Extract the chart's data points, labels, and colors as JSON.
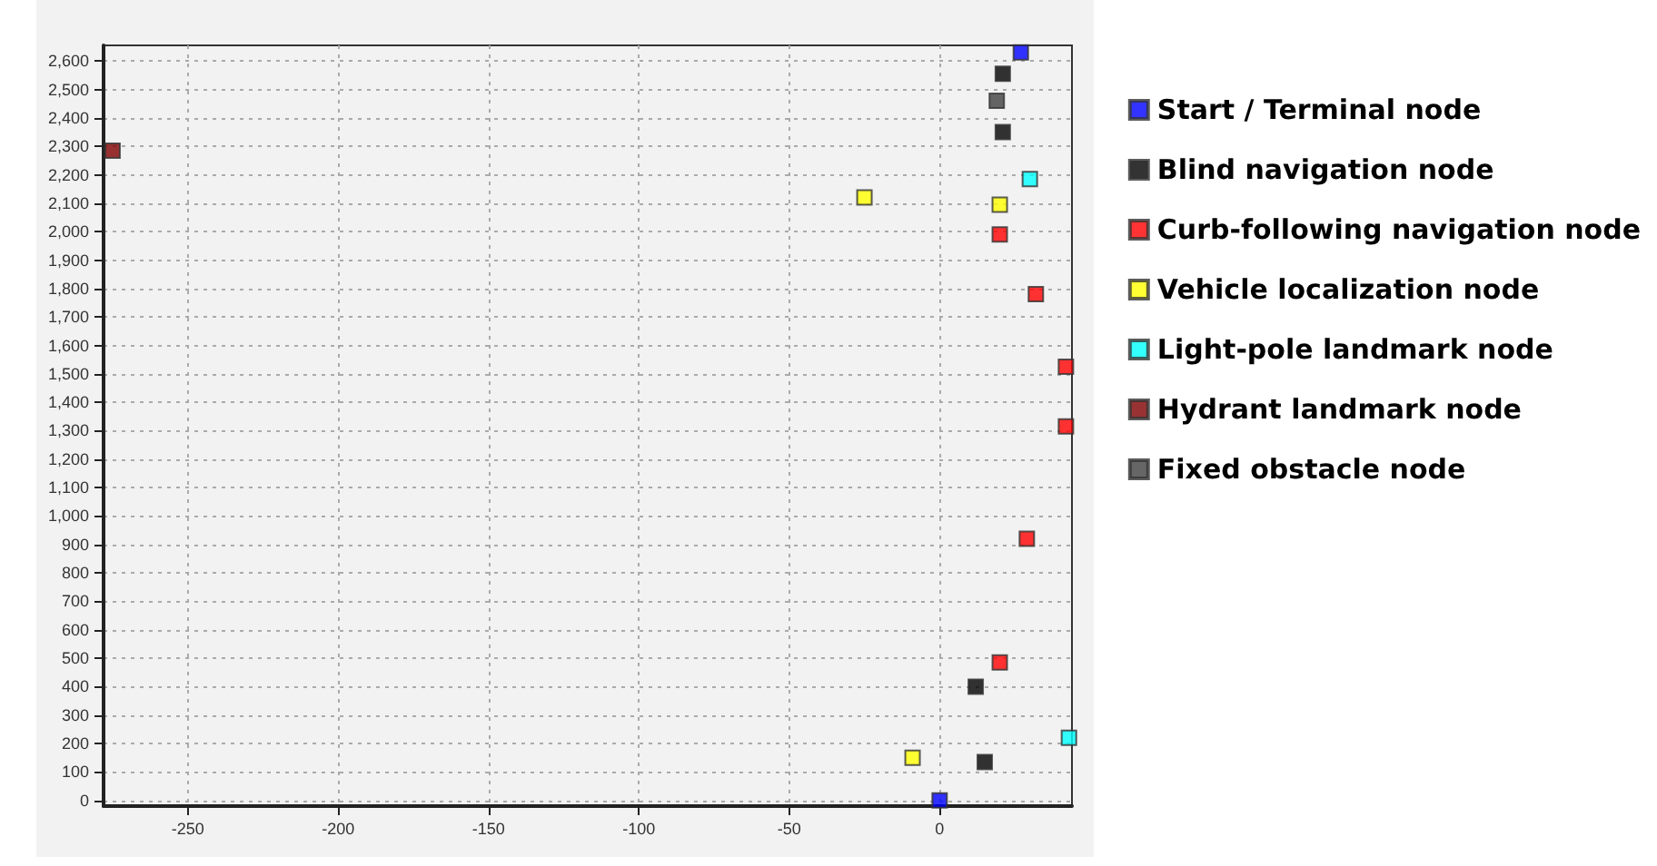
{
  "chart_data": {
    "type": "scatter",
    "marker": "square",
    "grid": true,
    "legend": "right",
    "xlim": [
      -278,
      44
    ],
    "ylim": [
      -20,
      2655
    ],
    "xticks": [
      -250,
      -200,
      -150,
      -100,
      -50,
      0
    ],
    "yticks": [
      0,
      100,
      200,
      300,
      400,
      500,
      600,
      700,
      800,
      900,
      {
        "value": 1000,
        "label": "1,000"
      },
      {
        "value": 1100,
        "label": "1,100"
      },
      {
        "value": 1200,
        "label": "1,200"
      },
      {
        "value": 1300,
        "label": "1,300"
      },
      {
        "value": 1400,
        "label": "1,400"
      },
      {
        "value": 1500,
        "label": "1,500"
      },
      {
        "value": 1600,
        "label": "1,600"
      },
      {
        "value": 1700,
        "label": "1,700"
      },
      {
        "value": 1800,
        "label": "1,800"
      },
      {
        "value": 1900,
        "label": "1,900"
      },
      {
        "value": 2000,
        "label": "2,000"
      },
      {
        "value": 2100,
        "label": "2,100"
      },
      {
        "value": 2200,
        "label": "2,200"
      },
      {
        "value": 2300,
        "label": "2,300"
      },
      {
        "value": 2400,
        "label": "2,400"
      },
      {
        "value": 2500,
        "label": "2,500"
      },
      {
        "value": 2600,
        "label": "2,600"
      }
    ],
    "series": [
      {
        "name": "Start / Terminal node",
        "color": "#0000ff",
        "x": [
          0,
          27
        ],
        "values": [
          0,
          2630
        ]
      },
      {
        "name": "Blind navigation node",
        "color": "#000000",
        "x": [
          21,
          21,
          12,
          15
        ],
        "values": [
          2555,
          2350,
          400,
          135
        ]
      },
      {
        "name": "Curb-following navigation node",
        "color": "#ff0000",
        "x": [
          20,
          32,
          42,
          42,
          29,
          20
        ],
        "values": [
          1990,
          1780,
          1525,
          1315,
          920,
          485
        ]
      },
      {
        "name": "Vehicle localization node",
        "color": "#ffff00",
        "x": [
          -25,
          20,
          -9
        ],
        "values": [
          2120,
          2095,
          150
        ]
      },
      {
        "name": "Light-pole landmark node",
        "color": "#00ffff",
        "x": [
          30,
          43
        ],
        "values": [
          2185,
          220
        ]
      },
      {
        "name": "Hydrant landmark node",
        "color": "#800000",
        "x": [
          -275
        ],
        "values": [
          2285
        ]
      },
      {
        "name": "Fixed obstacle node",
        "color": "#404040",
        "x": [
          19
        ],
        "values": [
          2460
        ]
      }
    ]
  }
}
